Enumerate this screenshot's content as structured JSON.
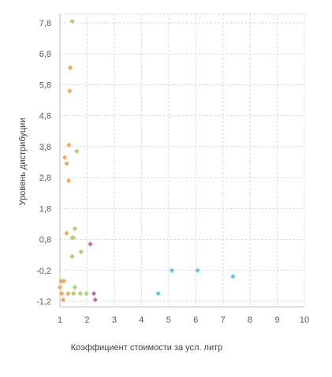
{
  "chart_data": {
    "type": "scatter",
    "xlabel": "Коэффициент стоимости за усл. литр",
    "ylabel": "Уровень дистрибуции",
    "xlim": [
      1,
      10
    ],
    "ylim": [
      -1.2,
      8.3
    ],
    "x_ticks": [
      1,
      2,
      3,
      4,
      5,
      6,
      7,
      8,
      9,
      10
    ],
    "x_tick_labels": [
      "1",
      "2",
      "3",
      "4",
      "5",
      "6",
      "7",
      "8",
      "9",
      "10"
    ],
    "y_ticks": [
      -1.2,
      -0.2,
      0.8,
      1.8,
      2.8,
      3.8,
      4.8,
      5.8,
      6.8,
      7.8
    ],
    "y_tick_labels": [
      "-1,2",
      "-0,2",
      "0,8",
      "1,8",
      "2,8",
      "3,8",
      "4,8",
      "5,8",
      "6,8",
      "7,8"
    ],
    "grid": true,
    "legend": false,
    "series": [
      {
        "color": "#f0a860",
        "points": [
          {
            "x": 1.38,
            "y": 6.35
          },
          {
            "x": 1.36,
            "y": 5.6
          },
          {
            "x": 1.33,
            "y": 3.85
          },
          {
            "x": 1.18,
            "y": 3.45
          },
          {
            "x": 1.25,
            "y": 3.25
          },
          {
            "x": 1.32,
            "y": 2.7
          },
          {
            "x": 1.25,
            "y": 1.0
          },
          {
            "x": 1.05,
            "y": -0.55
          },
          {
            "x": 1.15,
            "y": -0.55
          },
          {
            "x": 1.0,
            "y": -0.75
          },
          {
            "x": 1.07,
            "y": -0.95
          },
          {
            "x": 1.12,
            "y": -1.15
          },
          {
            "x": 1.3,
            "y": -0.95
          }
        ]
      },
      {
        "color": "#a9d46f",
        "points": [
          {
            "x": 1.45,
            "y": 7.85
          },
          {
            "x": 1.62,
            "y": 3.65
          },
          {
            "x": 1.55,
            "y": 1.15
          },
          {
            "x": 1.45,
            "y": 0.85
          },
          {
            "x": 1.5,
            "y": 0.85
          },
          {
            "x": 1.78,
            "y": 0.4
          },
          {
            "x": 1.45,
            "y": 0.25
          },
          {
            "x": 1.55,
            "y": -0.75
          },
          {
            "x": 1.5,
            "y": -0.95
          },
          {
            "x": 1.75,
            "y": -0.95
          },
          {
            "x": 1.97,
            "y": -0.95
          }
        ]
      },
      {
        "color": "#c76fa3",
        "points": [
          {
            "x": 2.12,
            "y": 0.65
          },
          {
            "x": 2.25,
            "y": -0.95
          },
          {
            "x": 2.3,
            "y": -1.15
          }
        ]
      },
      {
        "color": "#63c7d2",
        "points": [
          {
            "x": 4.62,
            "y": -0.95
          },
          {
            "x": 5.12,
            "y": -0.2
          },
          {
            "x": 6.07,
            "y": -0.2
          },
          {
            "x": 7.37,
            "y": -0.4
          }
        ]
      }
    ]
  }
}
